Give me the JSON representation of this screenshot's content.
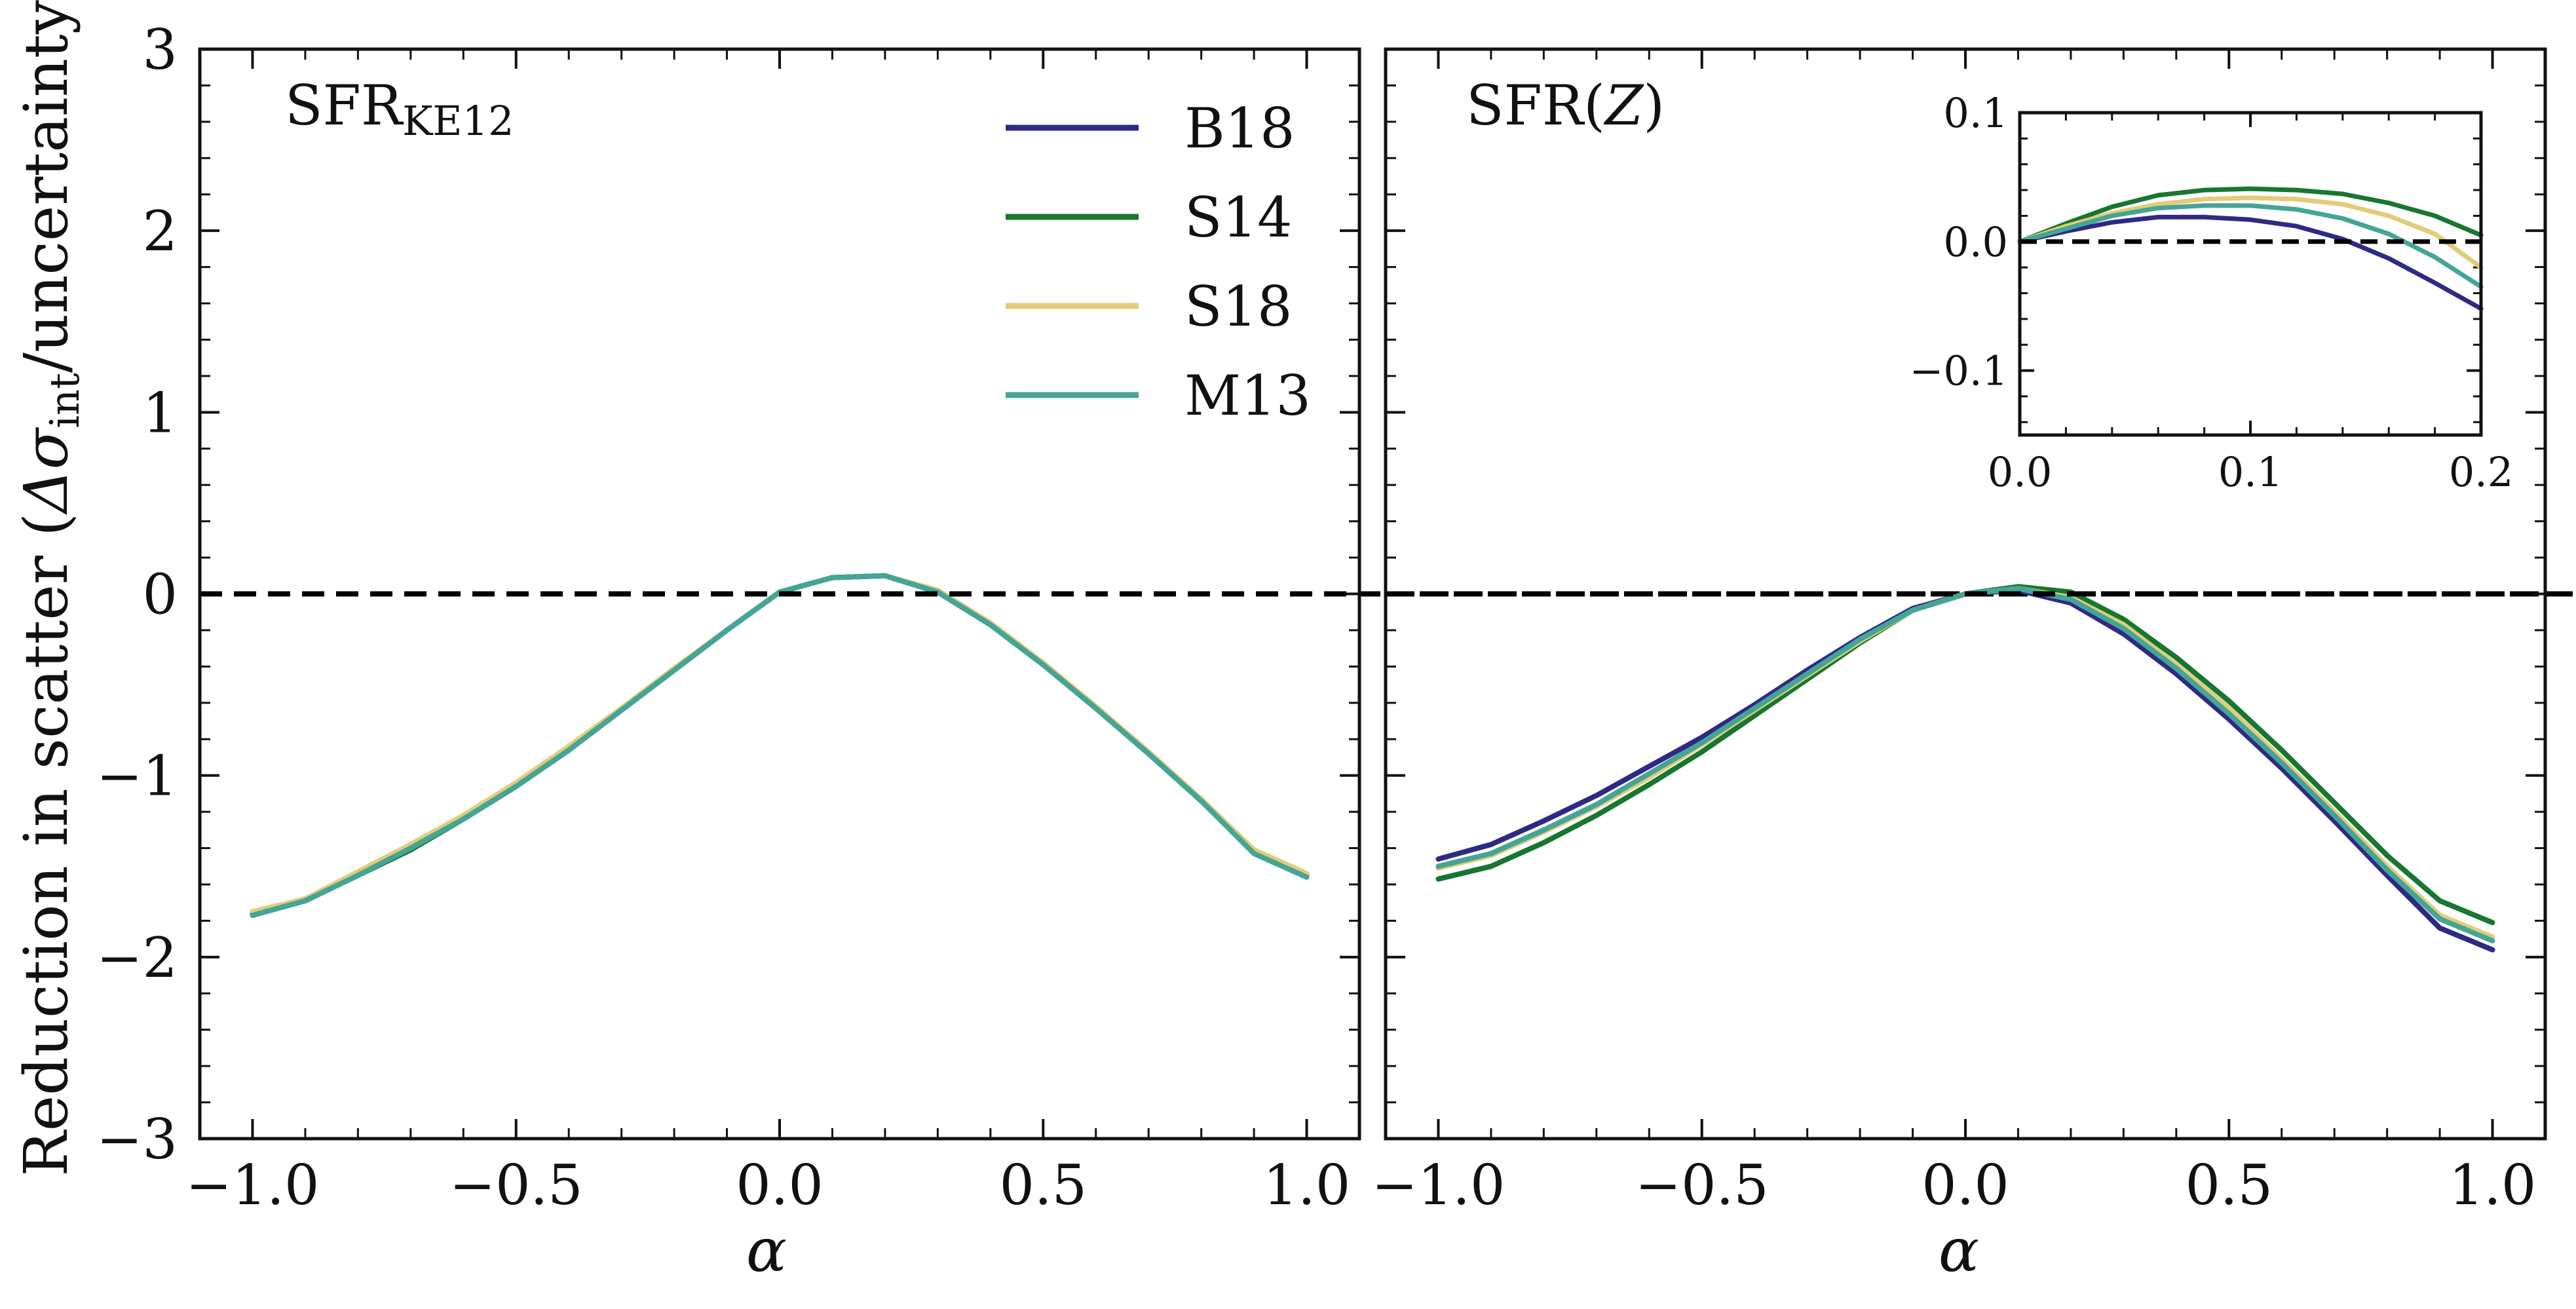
{
  "colors": {
    "B18": "#2e2a84",
    "S14": "#17762f",
    "S18": "#e3cc78",
    "M13": "#44a597",
    "zero_line": "#000000",
    "axes": "#111111"
  },
  "figure": {
    "ylabel_main": "Reduction in scatter (",
    "ylabel_delta": "Δσ",
    "ylabel_sub": "int",
    "ylabel_tail": "/uncertainty)"
  },
  "legend": {
    "entries": [
      "B18",
      "S14",
      "S18",
      "M13"
    ]
  },
  "chart_data": [
    {
      "type": "line",
      "panel": "left",
      "title_main": "SFR",
      "title_sub": "KE12",
      "xlabel": "α",
      "ylabel": "Reduction in scatter (Δσ_int/uncertainty)",
      "xlim": [
        -1.1,
        1.1
      ],
      "ylim": [
        -3,
        3
      ],
      "xticks": [
        -1.0,
        -0.5,
        0.0,
        0.5,
        1.0
      ],
      "xtick_labels": [
        "−1.0",
        "−0.5",
        "0.0",
        "0.5",
        "1.0"
      ],
      "yticks": [
        -3,
        -2,
        -1,
        0,
        1,
        2,
        3
      ],
      "ytick_labels": [
        "−3",
        "−2",
        "−1",
        "0",
        "1",
        "2",
        "3"
      ],
      "hline": 0,
      "x": [
        -1.0,
        -0.9,
        -0.8,
        -0.7,
        -0.6,
        -0.5,
        -0.4,
        -0.3,
        -0.2,
        -0.1,
        0.0,
        0.1,
        0.2,
        0.3,
        0.4,
        0.5,
        0.6,
        0.7,
        0.8,
        0.9,
        1.0
      ],
      "series": [
        {
          "name": "B18",
          "values": [
            -1.76,
            -1.69,
            -1.55,
            -1.4,
            -1.24,
            -1.06,
            -0.86,
            -0.64,
            -0.42,
            -0.2,
            0.01,
            0.09,
            0.1,
            0.01,
            -0.17,
            -0.39,
            -0.63,
            -0.88,
            -1.14,
            -1.42,
            -1.55
          ]
        },
        {
          "name": "S14",
          "values": [
            -1.77,
            -1.69,
            -1.55,
            -1.41,
            -1.24,
            -1.06,
            -0.86,
            -0.64,
            -0.42,
            -0.2,
            0.01,
            0.09,
            0.1,
            0.01,
            -0.17,
            -0.39,
            -0.63,
            -0.88,
            -1.14,
            -1.42,
            -1.55
          ]
        },
        {
          "name": "S18",
          "values": [
            -1.75,
            -1.68,
            -1.53,
            -1.38,
            -1.22,
            -1.04,
            -0.84,
            -0.63,
            -0.41,
            -0.2,
            0.01,
            0.09,
            0.1,
            0.02,
            -0.16,
            -0.38,
            -0.62,
            -0.87,
            -1.13,
            -1.41,
            -1.54
          ]
        },
        {
          "name": "M13",
          "values": [
            -1.77,
            -1.69,
            -1.55,
            -1.4,
            -1.24,
            -1.06,
            -0.86,
            -0.64,
            -0.42,
            -0.2,
            0.01,
            0.09,
            0.1,
            0.01,
            -0.17,
            -0.39,
            -0.63,
            -0.88,
            -1.14,
            -1.43,
            -1.56
          ]
        }
      ]
    },
    {
      "type": "line",
      "panel": "right",
      "title_main": "SFR(",
      "title_var": "Z",
      "title_close": ")",
      "xlabel": "α",
      "xlim": [
        -1.1,
        1.1
      ],
      "ylim": [
        -3,
        3
      ],
      "xticks": [
        -1.0,
        -0.5,
        0.0,
        0.5,
        1.0
      ],
      "xtick_labels": [
        "−1.0",
        "−0.5",
        "0.0",
        "0.5",
        "1.0"
      ],
      "yticks": [
        -3,
        -2,
        -1,
        0,
        1,
        2,
        3
      ],
      "hline": 0,
      "x": [
        -1.0,
        -0.9,
        -0.8,
        -0.7,
        -0.6,
        -0.5,
        -0.4,
        -0.3,
        -0.2,
        -0.1,
        0.0,
        0.1,
        0.2,
        0.3,
        0.4,
        0.5,
        0.6,
        0.7,
        0.8,
        0.9,
        1.0
      ],
      "series": [
        {
          "name": "B18",
          "values": [
            -1.46,
            -1.38,
            -1.25,
            -1.11,
            -0.95,
            -0.79,
            -0.61,
            -0.42,
            -0.24,
            -0.08,
            0.0,
            0.02,
            -0.05,
            -0.22,
            -0.44,
            -0.69,
            -0.96,
            -1.25,
            -1.55,
            -1.84,
            -1.96
          ]
        },
        {
          "name": "S14",
          "values": [
            -1.57,
            -1.5,
            -1.37,
            -1.22,
            -1.05,
            -0.87,
            -0.67,
            -0.47,
            -0.27,
            -0.09,
            0.0,
            0.04,
            0.01,
            -0.14,
            -0.35,
            -0.59,
            -0.86,
            -1.15,
            -1.44,
            -1.69,
            -1.81
          ]
        },
        {
          "name": "S18",
          "values": [
            -1.51,
            -1.44,
            -1.31,
            -1.17,
            -1.01,
            -0.83,
            -0.64,
            -0.45,
            -0.26,
            -0.09,
            0.0,
            0.03,
            -0.02,
            -0.17,
            -0.39,
            -0.63,
            -0.91,
            -1.2,
            -1.5,
            -1.77,
            -1.89
          ]
        },
        {
          "name": "M13",
          "values": [
            -1.5,
            -1.43,
            -1.3,
            -1.16,
            -0.99,
            -0.82,
            -0.63,
            -0.44,
            -0.25,
            -0.09,
            0.0,
            0.03,
            -0.03,
            -0.19,
            -0.41,
            -0.66,
            -0.93,
            -1.22,
            -1.52,
            -1.79,
            -1.91
          ]
        }
      ]
    },
    {
      "type": "line",
      "panel": "inset",
      "xlim": [
        0.0,
        0.2
      ],
      "ylim": [
        -0.15,
        0.1
      ],
      "xticks": [
        0.0,
        0.1,
        0.2
      ],
      "xtick_labels": [
        "0.0",
        "0.1",
        "0.2"
      ],
      "yticks": [
        -0.1,
        0.0,
        0.1
      ],
      "ytick_labels": [
        "−0.1",
        "0.0",
        "0.1"
      ],
      "hline": 0,
      "x": [
        0.0,
        0.02,
        0.04,
        0.06,
        0.08,
        0.1,
        0.12,
        0.14,
        0.16,
        0.18,
        0.2
      ],
      "series": [
        {
          "name": "B18",
          "values": [
            0.0,
            0.008,
            0.015,
            0.019,
            0.019,
            0.017,
            0.012,
            0.002,
            -0.013,
            -0.032,
            -0.052
          ]
        },
        {
          "name": "S14",
          "values": [
            0.0,
            0.014,
            0.027,
            0.036,
            0.04,
            0.041,
            0.04,
            0.037,
            0.03,
            0.02,
            0.005
          ]
        },
        {
          "name": "S18",
          "values": [
            0.0,
            0.012,
            0.022,
            0.029,
            0.033,
            0.034,
            0.033,
            0.029,
            0.02,
            0.006,
            -0.02
          ]
        },
        {
          "name": "M13",
          "values": [
            0.0,
            0.01,
            0.02,
            0.026,
            0.028,
            0.028,
            0.025,
            0.018,
            0.006,
            -0.012,
            -0.035
          ]
        }
      ]
    }
  ]
}
